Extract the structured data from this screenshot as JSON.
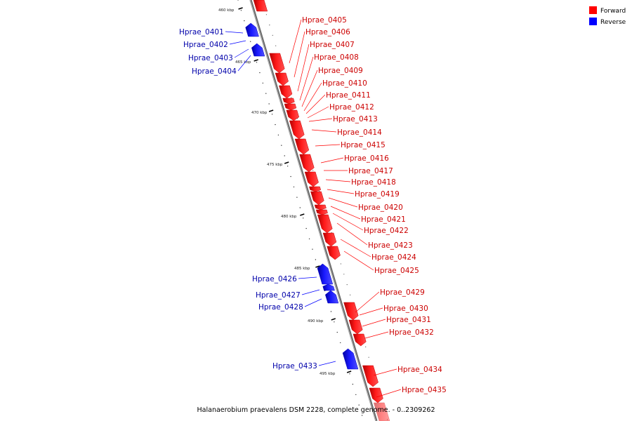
{
  "title": "Halanaerobium praevalens DSM 2228, complete genome. - 0..2309262",
  "legend": [
    {
      "label": "Forward",
      "color": "#ff0000"
    },
    {
      "label": "Reverse",
      "color": "#0000ff"
    }
  ],
  "colors": {
    "forward": "#ff0000",
    "reverse": "#0000ff",
    "backbone": "#7f7f7f"
  },
  "tick_labels": [
    "460 kbp",
    "465 kbp",
    "470 kbp",
    "475 kbp",
    "480 kbp",
    "485 kbp",
    "490 kbp",
    "495 kbp"
  ],
  "genes": [
    {
      "name": "Hprae_0401",
      "strand": "reverse"
    },
    {
      "name": "Hprae_0402",
      "strand": "reverse"
    },
    {
      "name": "Hprae_0403",
      "strand": "reverse"
    },
    {
      "name": "Hprae_0404",
      "strand": "reverse"
    },
    {
      "name": "Hprae_0405",
      "strand": "forward"
    },
    {
      "name": "Hprae_0406",
      "strand": "forward"
    },
    {
      "name": "Hprae_0407",
      "strand": "forward"
    },
    {
      "name": "Hprae_0408",
      "strand": "forward"
    },
    {
      "name": "Hprae_0409",
      "strand": "forward"
    },
    {
      "name": "Hprae_0410",
      "strand": "forward"
    },
    {
      "name": "Hprae_0411",
      "strand": "forward"
    },
    {
      "name": "Hprae_0412",
      "strand": "forward"
    },
    {
      "name": "Hprae_0413",
      "strand": "forward"
    },
    {
      "name": "Hprae_0414",
      "strand": "forward"
    },
    {
      "name": "Hprae_0415",
      "strand": "forward"
    },
    {
      "name": "Hprae_0416",
      "strand": "forward"
    },
    {
      "name": "Hprae_0417",
      "strand": "forward"
    },
    {
      "name": "Hprae_0418",
      "strand": "forward"
    },
    {
      "name": "Hprae_0419",
      "strand": "forward"
    },
    {
      "name": "Hprae_0420",
      "strand": "forward"
    },
    {
      "name": "Hprae_0421",
      "strand": "forward"
    },
    {
      "name": "Hprae_0422",
      "strand": "forward"
    },
    {
      "name": "Hprae_0423",
      "strand": "forward"
    },
    {
      "name": "Hprae_0424",
      "strand": "forward"
    },
    {
      "name": "Hprae_0425",
      "strand": "forward"
    },
    {
      "name": "Hprae_0426",
      "strand": "reverse"
    },
    {
      "name": "Hprae_0427",
      "strand": "reverse"
    },
    {
      "name": "Hprae_0428",
      "strand": "reverse"
    },
    {
      "name": "Hprae_0429",
      "strand": "forward"
    },
    {
      "name": "Hprae_0430",
      "strand": "forward"
    },
    {
      "name": "Hprae_0431",
      "strand": "forward"
    },
    {
      "name": "Hprae_0432",
      "strand": "forward"
    },
    {
      "name": "Hprae_0433",
      "strand": "reverse"
    },
    {
      "name": "Hprae_0434",
      "strand": "forward"
    },
    {
      "name": "Hprae_0435",
      "strand": "forward"
    }
  ]
}
